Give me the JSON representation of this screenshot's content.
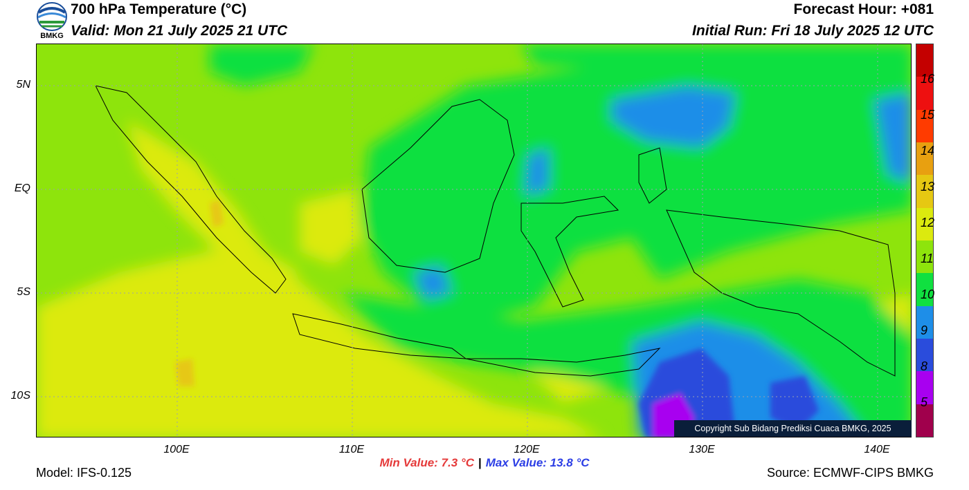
{
  "header": {
    "title": "700 hPa Temperature (°C)",
    "valid": "Valid: Mon 21 July 2025 21 UTC",
    "forecast_hour": "Forecast Hour: +081",
    "initial_run": "Initial Run: Fri 18 July 2025 12 UTC",
    "logo_text": "BMKG"
  },
  "map": {
    "lat_labels": [
      "5N",
      "EQ",
      "5S",
      "10S"
    ],
    "lon_labels": [
      "100E",
      "110E",
      "120E",
      "130E",
      "140E"
    ],
    "extent": {
      "lon_min": 92,
      "lon_max": 142,
      "lat_min": -12,
      "lat_max": 7
    },
    "copyright": "Copyright Sub Bidang Prediksi Cuaca BMKG, 2025"
  },
  "colorbar": {
    "labels": [
      "16",
      "15",
      "14",
      "13",
      "12",
      "11",
      "10",
      "9",
      "8",
      "5"
    ],
    "colors": [
      "#c40000",
      "#ee1010",
      "#ff3b00",
      "#e8a010",
      "#e6c812",
      "#dcea0e",
      "#8ee40c",
      "#10e040",
      "#1e8ee8",
      "#2a4cdc",
      "#a800f0",
      "#a0004c"
    ]
  },
  "stats": {
    "min_value": "Min Value: 7.3 °C",
    "separator": "|",
    "max_value": "Max Value: 13.8 °C"
  },
  "footer": {
    "model": "Model: IFS-0.125",
    "source": "Source: ECMWF-CIPS BMKG"
  }
}
